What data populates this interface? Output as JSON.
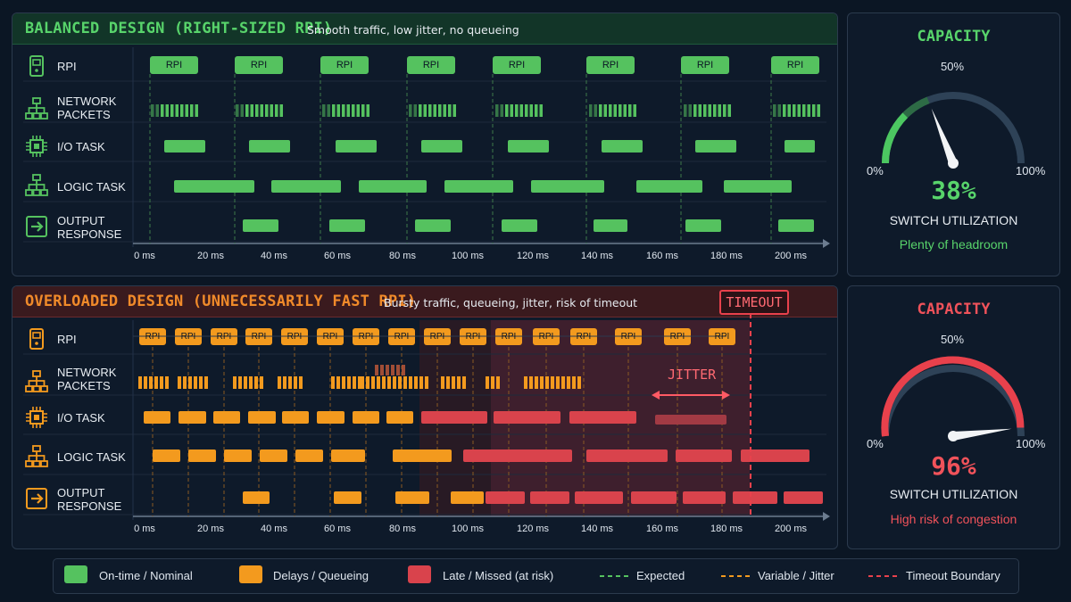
{
  "balanced": {
    "title": "BALANCED DESIGN (RIGHT-SIZED RPI)",
    "subtitle": "Smooth traffic, low jitter, no queueing",
    "rpi_label": "RPI"
  },
  "overloaded": {
    "title": "OVERLOADED DESIGN (UNNECESSARILY FAST RPI)",
    "subtitle": "Bursty traffic, queueing, jitter, risk of timeout",
    "timeout_label": "TIMEOUT",
    "jitter_label": "JITTER",
    "rpi_label": "RPI"
  },
  "lanes": {
    "rpi": "RPI",
    "packets_1": "NETWORK",
    "packets_2": "PACKETS",
    "io": "I/O TASK",
    "logic": "LOGIC TASK",
    "output_1": "OUTPUT",
    "output_2": "RESPONSE"
  },
  "axis": {
    "ticks": [
      "0 ms",
      "20 ms",
      "40 ms",
      "60 ms",
      "80 ms",
      "100 ms",
      "120 ms",
      "140 ms",
      "160 ms",
      "180 ms",
      "200 ms"
    ]
  },
  "gauge_top": {
    "title": "CAPACITY",
    "mid": "50%",
    "min": "0%",
    "max": "100%",
    "value_text": "38%",
    "value": 38,
    "label": "SWITCH UTILIZATION",
    "note": "Plenty of headroom",
    "color": "#4cc761"
  },
  "gauge_bottom": {
    "title": "CAPACITY",
    "mid": "50%",
    "min": "0%",
    "max": "100%",
    "value_text": "96%",
    "value": 96,
    "label": "SWITCH UTILIZATION",
    "note": "High risk of congestion",
    "color": "#e8414c"
  },
  "legend": {
    "ontime": "On-time / Nominal",
    "delays": "Delays / Queueing",
    "late": "Late / Missed (at risk)",
    "expected": "Expected",
    "variable": "Variable / Jitter",
    "timeout": "Timeout Boundary"
  },
  "colors": {
    "green": "#55c25f",
    "orange": "#f39a1e",
    "red": "#d9434c",
    "bg": "#0b1624"
  }
}
